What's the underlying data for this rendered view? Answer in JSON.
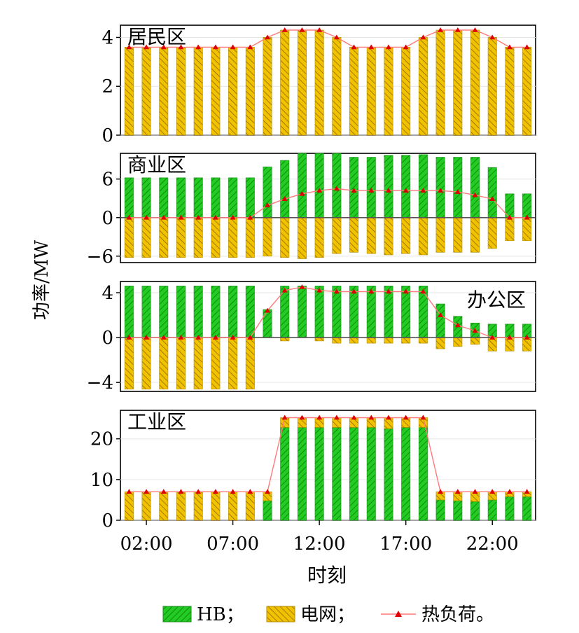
{
  "chart_data": {
    "type": "bar",
    "ylabel": "功率/MW",
    "xlabel": "时刻",
    "x": [
      1,
      2,
      3,
      4,
      5,
      6,
      7,
      8,
      9,
      10,
      11,
      12,
      13,
      14,
      15,
      16,
      17,
      18,
      19,
      20,
      21,
      22,
      23,
      24
    ],
    "xtick_values": [
      2,
      7,
      12,
      17,
      22
    ],
    "xtick_labels": [
      "02:00",
      "07:00",
      "12:00",
      "17:00",
      "22:00"
    ],
    "legend": {
      "placement": "bottom",
      "entries": [
        {
          "key": "hb",
          "label": "HB；"
        },
        {
          "key": "grid",
          "label": "电网；"
        },
        {
          "key": "heat",
          "label": "热负荷。"
        }
      ]
    },
    "colors": {
      "hb_fill": "#22cc22",
      "hb_hatch": "#0a6e0a",
      "grid_fill": "#f2c200",
      "grid_hatch": "#7a6000",
      "heat_line": "#ff7a7a",
      "heat_marker": "#e00000",
      "zero_line": "#555555"
    },
    "panels": [
      {
        "title": "居民区",
        "title_anchor": "top-left",
        "ylim": [
          0,
          4.5
        ],
        "yticks": [
          0,
          2,
          4
        ],
        "zero_line": false,
        "hb": [
          0,
          0,
          0,
          0,
          0,
          0,
          0,
          0,
          0,
          0,
          0,
          0,
          0,
          0,
          0,
          0,
          0,
          0,
          0,
          0,
          0,
          0,
          0,
          0
        ],
        "grid": [
          3.6,
          3.6,
          3.6,
          3.6,
          3.6,
          3.6,
          3.6,
          3.6,
          4.0,
          4.3,
          4.3,
          4.3,
          4.0,
          3.6,
          3.6,
          3.6,
          3.6,
          4.0,
          4.3,
          4.3,
          4.3,
          4.0,
          3.6,
          3.6
        ],
        "heat": [
          3.6,
          3.6,
          3.6,
          3.6,
          3.6,
          3.6,
          3.6,
          3.6,
          4.0,
          4.3,
          4.3,
          4.3,
          4.0,
          3.6,
          3.6,
          3.6,
          3.6,
          4.0,
          4.3,
          4.3,
          4.3,
          4.0,
          3.6,
          3.6
        ]
      },
      {
        "title": "商业区",
        "title_anchor": "top-left",
        "ylim": [
          -7,
          10
        ],
        "yticks": [
          -6,
          0,
          6
        ],
        "zero_line": true,
        "hb": [
          6.2,
          6.2,
          6.2,
          6.2,
          6.2,
          6.2,
          6.2,
          6.2,
          7.9,
          8.9,
          10.0,
          10.0,
          10.0,
          9.4,
          9.4,
          9.7,
          9.7,
          9.8,
          9.4,
          9.4,
          9.4,
          7.8,
          3.7,
          3.7
        ],
        "grid": [
          -6.2,
          -6.2,
          -6.2,
          -6.2,
          -6.2,
          -6.2,
          -6.2,
          -6.2,
          -6.0,
          -6.2,
          -6.4,
          -6.2,
          -5.6,
          -5.4,
          -5.6,
          -5.8,
          -5.6,
          -5.8,
          -5.4,
          -5.4,
          -5.4,
          -4.8,
          -3.6,
          -3.6
        ],
        "heat": [
          0,
          0,
          0,
          0,
          0,
          0,
          0,
          0,
          1.9,
          2.9,
          3.7,
          4.2,
          4.5,
          4.2,
          4.2,
          4.2,
          4.2,
          4.2,
          4.2,
          4.0,
          3.5,
          2.9,
          0,
          0
        ]
      },
      {
        "title": "办公区",
        "title_anchor": "top-right",
        "ylim": [
          -4.8,
          5
        ],
        "yticks": [
          -4,
          0,
          4
        ],
        "zero_line": true,
        "hb": [
          4.6,
          4.6,
          4.6,
          4.6,
          4.6,
          4.6,
          4.6,
          4.6,
          2.5,
          4.6,
          4.6,
          4.6,
          4.6,
          4.6,
          4.6,
          4.6,
          4.6,
          4.6,
          3.0,
          1.9,
          1.3,
          1.2,
          1.2,
          1.2
        ],
        "grid": [
          -4.6,
          -4.6,
          -4.6,
          -4.6,
          -4.6,
          -4.6,
          -4.6,
          -4.6,
          0,
          -0.3,
          0,
          -0.3,
          -0.5,
          -0.5,
          -0.5,
          -0.5,
          -0.5,
          -0.5,
          -1.0,
          -0.8,
          -0.6,
          -1.2,
          -1.2,
          -1.2
        ],
        "heat": [
          0,
          0,
          0,
          0,
          0,
          0,
          0,
          0,
          2.4,
          4.2,
          4.5,
          4.2,
          4.1,
          4.1,
          4.1,
          4.1,
          4.1,
          4.1,
          2.0,
          1.1,
          0.6,
          0,
          0,
          0
        ]
      },
      {
        "title": "工业区",
        "title_anchor": "top-left",
        "ylim": [
          0,
          27
        ],
        "yticks": [
          0,
          10,
          20
        ],
        "zero_line": false,
        "hb": [
          0,
          0,
          0,
          0,
          0,
          0,
          0,
          0,
          4.8,
          22.8,
          22.8,
          22.8,
          22.8,
          22.8,
          22.8,
          22.5,
          22.8,
          22.8,
          5.0,
          4.8,
          4.6,
          5.0,
          5.8,
          5.8
        ],
        "grid": [
          7.0,
          7.0,
          7.0,
          7.0,
          7.0,
          7.0,
          7.0,
          7.0,
          2.2,
          2.4,
          2.4,
          2.4,
          2.4,
          2.4,
          2.4,
          2.7,
          2.4,
          2.4,
          2.0,
          2.2,
          2.4,
          2.0,
          1.2,
          1.2
        ],
        "heat": [
          7.0,
          7.0,
          7.0,
          7.0,
          7.0,
          7.0,
          7.0,
          7.0,
          7.0,
          25.2,
          25.2,
          25.2,
          25.2,
          25.2,
          25.2,
          25.2,
          25.2,
          25.2,
          7.0,
          7.0,
          7.0,
          7.0,
          7.0,
          7.0
        ]
      }
    ]
  }
}
